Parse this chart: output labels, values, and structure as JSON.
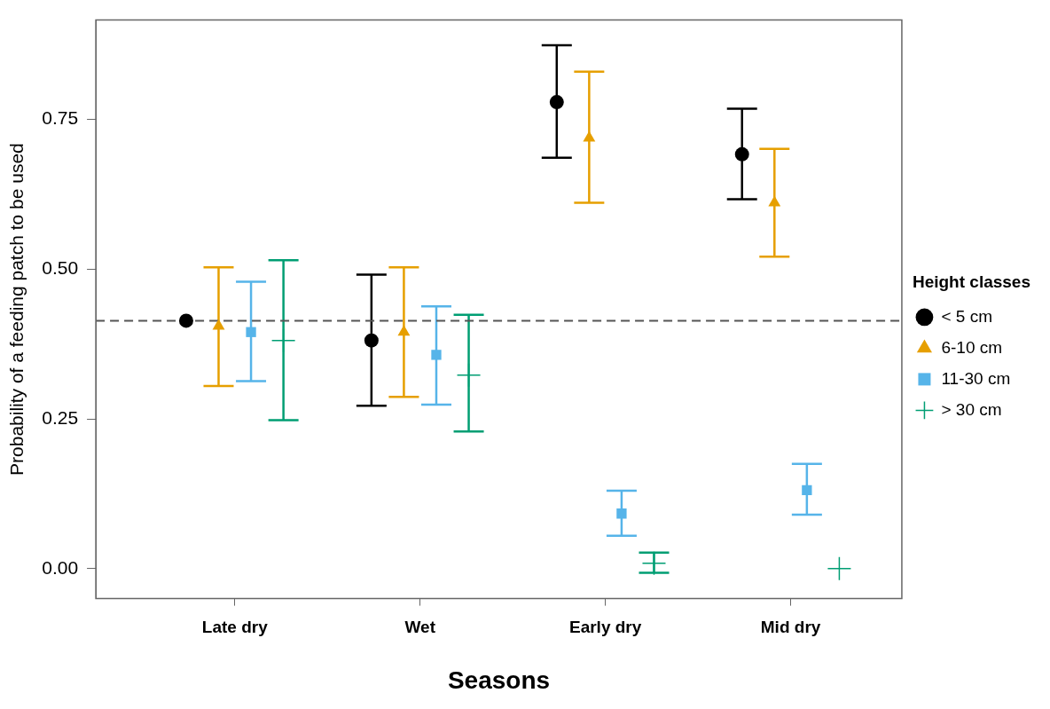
{
  "chart_data": {
    "type": "scatter",
    "xlabel": "Seasons",
    "ylabel": "Probability of a feeding patch to be used",
    "legend_title": "Height classes",
    "legend": "right",
    "grid": false,
    "categories": [
      "Late dry",
      "Wet",
      "Early dry",
      "Mid dry"
    ],
    "ylim": [
      -0.05,
      0.916
    ],
    "yticks": [
      {
        "value": 0,
        "label": "0.00"
      },
      {
        "value": 0.25,
        "label": "0.25"
      },
      {
        "value": 0.5,
        "label": "0.50"
      },
      {
        "value": 0.75,
        "label": "0.75"
      }
    ],
    "ref_lines": [
      {
        "axis": "y",
        "value": 0.414,
        "label": null,
        "color": "#555555",
        "line_style": "dashed"
      }
    ],
    "series": [
      {
        "name": "< 5 cm",
        "color": "#000000",
        "marker": "circle",
        "values": [
          0.414,
          0.381,
          0.779,
          0.692
        ],
        "errors": [
          null,
          [
            0.272,
            0.491
          ],
          [
            0.686,
            0.874
          ],
          [
            0.617,
            0.768
          ]
        ]
      },
      {
        "name": "6-10 cm",
        "color": "#e69f00",
        "marker": "triangle",
        "values": [
          0.405,
          0.395,
          0.719,
          0.611
        ],
        "errors": [
          [
            0.305,
            0.503
          ],
          [
            0.287,
            0.503
          ],
          [
            0.611,
            0.83
          ],
          [
            0.521,
            0.701
          ]
        ]
      },
      {
        "name": "11-30 cm",
        "color": "#56b4e9",
        "marker": "square",
        "values": [
          0.395,
          0.357,
          0.092,
          0.131
        ],
        "errors": [
          [
            0.313,
            0.479
          ],
          [
            0.274,
            0.438
          ],
          [
            0.055,
            0.13
          ],
          [
            0.09,
            0.175
          ]
        ]
      },
      {
        "name": "> 30 cm",
        "color": "#009e73",
        "marker": "cross",
        "values": [
          0.381,
          0.323,
          0.009,
          0
        ],
        "errors": [
          [
            0.248,
            0.515
          ],
          [
            0.229,
            0.424
          ],
          [
            -0.007,
            0.027
          ],
          null
        ]
      }
    ]
  }
}
